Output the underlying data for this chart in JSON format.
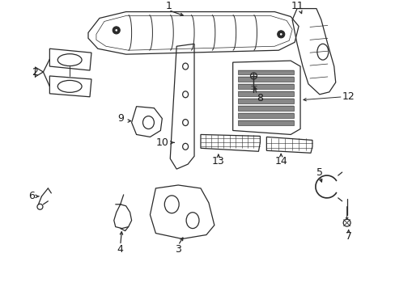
{
  "bg_color": "#ffffff",
  "line_color": "#2a2a2a",
  "label_color": "#1a1a1a",
  "figsize": [
    4.89,
    3.6
  ],
  "dpi": 100
}
